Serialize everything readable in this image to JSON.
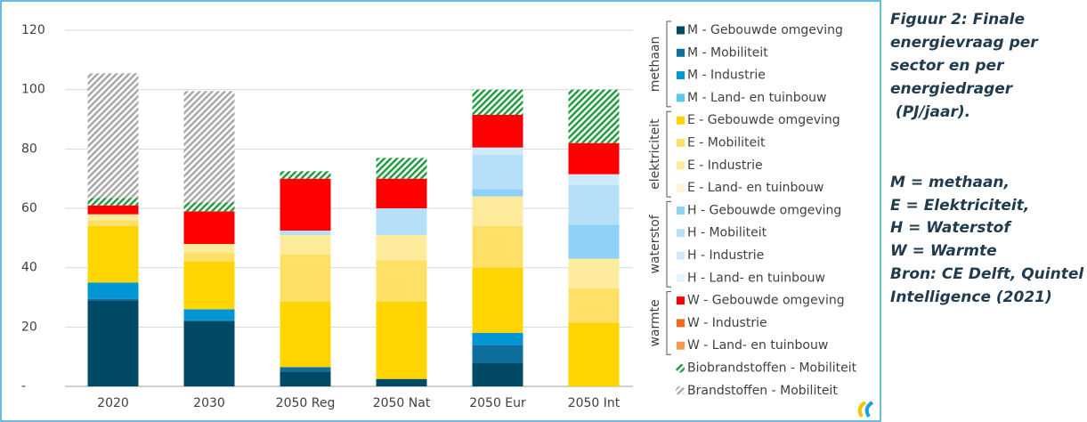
{
  "chart_data": {
    "type": "stacked_bar",
    "categories": [
      "2020",
      "2030",
      "2050 Reg",
      "2050 Nat",
      "2050 Eur",
      "2050 Int"
    ],
    "ylim": [
      0,
      120
    ],
    "yticks": [
      {
        "value": 0,
        "label": "-"
      },
      20,
      40,
      60,
      80,
      100,
      120
    ],
    "grid": true,
    "series": [
      {
        "name": "M - Gebouwde omgeving",
        "color": "#004a66",
        "values": [
          29,
          22,
          5,
          2.5,
          8,
          0
        ]
      },
      {
        "name": "M - Mobiliteit",
        "color": "#0f6f9c",
        "values": [
          0.5,
          0.3,
          1.5,
          0,
          6,
          0
        ]
      },
      {
        "name": "M - Industrie",
        "color": "#0096d6",
        "values": [
          5.5,
          3.7,
          0,
          0,
          4,
          0
        ]
      },
      {
        "name": "M - Land- en tuinbouw",
        "color": "#5bc8f2",
        "values": [
          0,
          0,
          0,
          0,
          0,
          0
        ]
      },
      {
        "name": "E - Gebouwde omgeving",
        "color": "#ffd400",
        "values": [
          19,
          16,
          22,
          26,
          22,
          21.5
        ]
      },
      {
        "name": "E - Mobiliteit",
        "color": "#ffe066",
        "values": [
          2,
          3,
          16,
          14,
          14,
          11.5
        ]
      },
      {
        "name": "E - Industrie",
        "color": "#ffeb9c",
        "values": [
          2,
          3,
          6.5,
          8.5,
          10,
          10
        ]
      },
      {
        "name": "E - Land- en tuinbouw",
        "color": "#fff5cc",
        "values": [
          0,
          0,
          0,
          0,
          0,
          0
        ]
      },
      {
        "name": "H - Gebouwde omgeving",
        "color": "#8ed1f6",
        "values": [
          0,
          0,
          0,
          0,
          2.5,
          11.5
        ]
      },
      {
        "name": "H - Mobiliteit",
        "color": "#b6e0f9",
        "values": [
          0,
          0,
          1.5,
          9,
          11.5,
          13.5
        ]
      },
      {
        "name": "H - Industrie",
        "color": "#cfeafb",
        "values": [
          0,
          0,
          0,
          0,
          2.5,
          3.5
        ]
      },
      {
        "name": "H - Land- en tuinbouw",
        "color": "#e6f4fd",
        "values": [
          0,
          0,
          0,
          0,
          0,
          0
        ]
      },
      {
        "name": "W - Gebouwde omgeving",
        "color": "#ff0000",
        "values": [
          3,
          11,
          17.5,
          10,
          11,
          10.5
        ]
      },
      {
        "name": "W - Industrie",
        "color": "#f26a1b",
        "values": [
          0,
          0,
          0,
          0,
          0,
          0
        ]
      },
      {
        "name": "W - Land- en tuinbouw",
        "color": "#f6994a",
        "values": [
          0,
          0,
          0,
          0,
          0,
          0
        ]
      },
      {
        "name": "Biobrandstoffen - Mobiliteit",
        "color": "#1a9a3a",
        "pattern": "hatch",
        "values": [
          2.5,
          3,
          2.5,
          7,
          8.5,
          18
        ]
      },
      {
        "name": "Brandstoffen - Mobiliteit",
        "color": "#a6a6a6",
        "pattern": "hatch",
        "values": [
          42,
          37.5,
          0,
          0,
          0,
          0
        ]
      }
    ],
    "legend_groups": [
      "methaan",
      "elektriciteit",
      "waterstof",
      "warmte"
    ]
  },
  "caption": [
    "Figuur 2: Finale",
    "energievraag per",
    "sector en per",
    "energiedrager",
    " (PJ/jaar).",
    "M = methaan,",
    "E = Elektriciteit,",
    "H = Waterstof",
    "W = Warmte",
    "Bron: CE Delft, Quintel",
    "Intelligence (2021)"
  ]
}
